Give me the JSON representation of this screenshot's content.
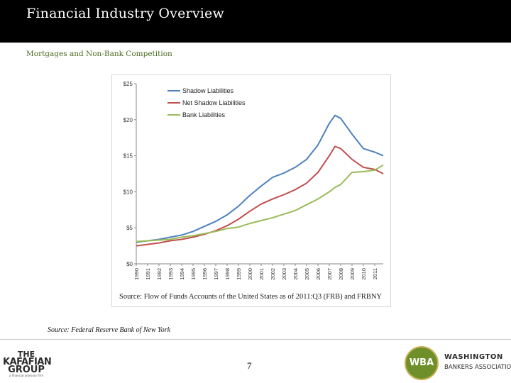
{
  "header": {
    "title": "Financial Industry Overview"
  },
  "subtitle": "Mortgages and Non-Bank Competition",
  "chart_source_text": "Source: Flow of Funds Accounts of the United States as of 2011:Q3 (FRB) and FRBNY",
  "source_note": "Source: Federal Reserve Bank of New York",
  "footer": {
    "page_number": "7",
    "left_logo": {
      "line1": "THE",
      "line2": "KAFAFIAN",
      "line3": "GROUP",
      "tagline": "a financial advisory firm"
    },
    "right_logo": {
      "badge": "WBA",
      "line1": "Washington",
      "line2": "Bankers Association"
    }
  },
  "colors": {
    "header_bg": "#000000",
    "shadow": "#4f81bd",
    "net_shadow": "#c0504d",
    "bank": "#9bbb59",
    "wba_green": "#6f8f2a"
  },
  "chart_data": {
    "type": "line",
    "title": "",
    "xlabel": "",
    "ylabel": "",
    "x": [
      1990,
      1991,
      1992,
      1993,
      1994,
      1995,
      1996,
      1997,
      1998,
      1999,
      2000,
      2001,
      2002,
      2003,
      2004,
      2005,
      2006,
      2007,
      2007.5,
      2008,
      2009,
      2010,
      2011,
      2011.75
    ],
    "x_tick_labels": [
      "1990",
      "1991",
      "1992",
      "1993",
      "1994",
      "1995",
      "1996",
      "1997",
      "1998",
      "1999",
      "2000",
      "2001",
      "2002",
      "2003",
      "2004",
      "2005",
      "2006",
      "2007",
      "2008",
      "2009",
      "2010",
      "2011"
    ],
    "y_tick_labels": [
      "$0",
      "$5",
      "$10",
      "$15",
      "$20",
      "$25"
    ],
    "ylim": [
      0,
      25
    ],
    "series": [
      {
        "name": "Shadow Liabilities",
        "color": "#4f81bd",
        "values": [
          3.0,
          3.2,
          3.4,
          3.7,
          4.0,
          4.5,
          5.2,
          5.9,
          6.8,
          8.0,
          9.5,
          10.8,
          12.0,
          12.6,
          13.4,
          14.5,
          16.5,
          19.5,
          20.6,
          20.2,
          18.0,
          16.0,
          15.5,
          15.0
        ]
      },
      {
        "name": "Net Shadow Liabilities",
        "color": "#c0504d",
        "values": [
          2.5,
          2.7,
          2.9,
          3.2,
          3.4,
          3.7,
          4.1,
          4.6,
          5.3,
          6.2,
          7.3,
          8.3,
          9.0,
          9.6,
          10.3,
          11.2,
          12.7,
          15.0,
          16.3,
          16.0,
          14.5,
          13.4,
          13.1,
          12.5
        ]
      },
      {
        "name": "Bank Liabilities",
        "color": "#9bbb59",
        "values": [
          3.1,
          3.2,
          3.3,
          3.4,
          3.7,
          3.9,
          4.2,
          4.5,
          4.9,
          5.1,
          5.6,
          6.0,
          6.4,
          6.9,
          7.4,
          8.2,
          9.0,
          10.0,
          10.6,
          11.0,
          12.7,
          12.8,
          13.0,
          13.7
        ]
      }
    ],
    "legend_position": "top-left",
    "grid": false
  }
}
